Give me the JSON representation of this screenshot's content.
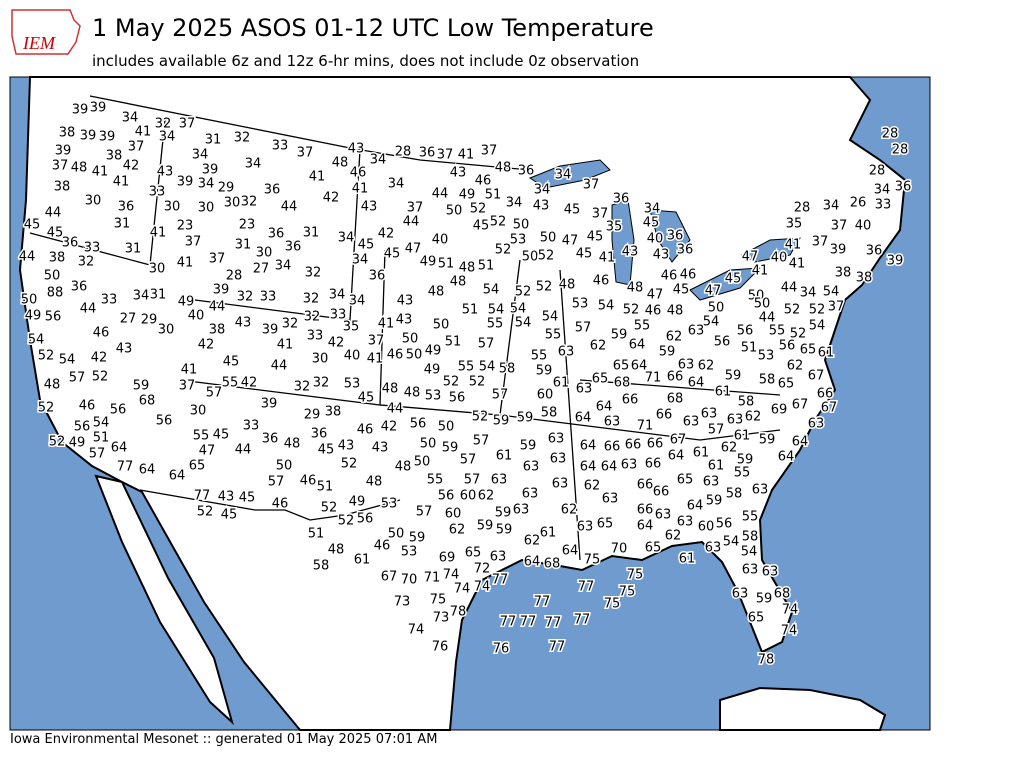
{
  "header": {
    "logo": "IEM",
    "title": "1 May 2025 ASOS 01-12 UTC Low Temperature",
    "subtitle": "includes available 6z and 12z 6-hr mins, does not include 0z observation"
  },
  "footer": "Iowa Environmental Mesonet :: generated 01 May 2025 07:01 AM",
  "stations": [
    39,
    39,
    34,
    32,
    37,
    38,
    39,
    39,
    41,
    34,
    31,
    32,
    33,
    37,
    43,
    28,
    36,
    37,
    41,
    37,
    39,
    38,
    37,
    34,
    34,
    48,
    34,
    37,
    48,
    41,
    42,
    43,
    39,
    41,
    46,
    34,
    43,
    46,
    48,
    36,
    34,
    37,
    28,
    28,
    38,
    41,
    33,
    39,
    34,
    29,
    36,
    41,
    44,
    49,
    51,
    34,
    28,
    34,
    36,
    30,
    36,
    30,
    30,
    30,
    32,
    44,
    42,
    43,
    37,
    50,
    52,
    34,
    43,
    45,
    37,
    36,
    34,
    28,
    34,
    26,
    33,
    45,
    44,
    31,
    23,
    23,
    36,
    31,
    44,
    45,
    52,
    50,
    35,
    45,
    35,
    37,
    40,
    45,
    36,
    33,
    41,
    37,
    31,
    36,
    34,
    45,
    42,
    40,
    53,
    50,
    47,
    45,
    40,
    36,
    38,
    31,
    30,
    44,
    32,
    30,
    41,
    37,
    28,
    27,
    34,
    32,
    34,
    45,
    47,
    49,
    51,
    48,
    51,
    52,
    50,
    52,
    45,
    41,
    43,
    43,
    36,
    46,
    36,
    39,
    38,
    38,
    47,
    40,
    41,
    37,
    39,
    41,
    50,
    88,
    36,
    50,
    33,
    34,
    31,
    49,
    39,
    44,
    32,
    33,
    32,
    34,
    34,
    36,
    43,
    48,
    48,
    54,
    52,
    52,
    48,
    53,
    54,
    48,
    46,
    46,
    52,
    47,
    45,
    47,
    45,
    41,
    50,
    44,
    34,
    54,
    37,
    52,
    52,
    49,
    56,
    44,
    27,
    29,
    30,
    40,
    43,
    32,
    32,
    33,
    35,
    41,
    43,
    50,
    51,
    54,
    54,
    54,
    46,
    48,
    50,
    54,
    56,
    44,
    55,
    50,
    52,
    54,
    54,
    46,
    42,
    38,
    39,
    41,
    33,
    42,
    37,
    50,
    49,
    51,
    57,
    55,
    54,
    55,
    57,
    59,
    62,
    64,
    55,
    62,
    63,
    56,
    51,
    56,
    65,
    52,
    61,
    52,
    54,
    42,
    43,
    45,
    44,
    30,
    40,
    41,
    46,
    50,
    49,
    55,
    54,
    58,
    55,
    63,
    59,
    59,
    64,
    65,
    68,
    71,
    66,
    63,
    62,
    64,
    53,
    62,
    48,
    57,
    52,
    41,
    37,
    57,
    55,
    42,
    32,
    32,
    53,
    48,
    48,
    53,
    52,
    52,
    56,
    57,
    60,
    61,
    63,
    65,
    59,
    58,
    65,
    67,
    61,
    52,
    59,
    68,
    46,
    56,
    56,
    30,
    39,
    45,
    44,
    29,
    38,
    52,
    59,
    59,
    58,
    64,
    64,
    66,
    68,
    63,
    71,
    66,
    63,
    63,
    63,
    58,
    62,
    69,
    67,
    66,
    67,
    63,
    57,
    61,
    59,
    64,
    56,
    54,
    52,
    49,
    51,
    57,
    64,
    55,
    45,
    47,
    33,
    36,
    48,
    36,
    45,
    43,
    46,
    42,
    56,
    50,
    50,
    59,
    57,
    61,
    63,
    64,
    66,
    66,
    66,
    67,
    64,
    61,
    62,
    59,
    55,
    64,
    77,
    64,
    64,
    65,
    44,
    50,
    57,
    46,
    51,
    52,
    48,
    43,
    48,
    50,
    57,
    59,
    63,
    63,
    64,
    64,
    63,
    66,
    61,
    65,
    63,
    77,
    43,
    45,
    46,
    52,
    49,
    53,
    55,
    57,
    56,
    60,
    62,
    63,
    63,
    62,
    63,
    63,
    66,
    66,
    64,
    59,
    58,
    63,
    52,
    45,
    56,
    52,
    57,
    60,
    59,
    63,
    62,
    66,
    63,
    65,
    64,
    63,
    60,
    56,
    55,
    51,
    50,
    59,
    62,
    59,
    59,
    61,
    63,
    62,
    48,
    46,
    53,
    69,
    65,
    72,
    63,
    61,
    58,
    64,
    68,
    64,
    75,
    70,
    65,
    62,
    61,
    63,
    54,
    58,
    54,
    67,
    70,
    71,
    74,
    74,
    74,
    77,
    77,
    75,
    75,
    75,
    63,
    63,
    73,
    75,
    78,
    73,
    77,
    77,
    77,
    77,
    77,
    68,
    59,
    74,
    63,
    65,
    74,
    74,
    76,
    76,
    77,
    78
  ]
}
